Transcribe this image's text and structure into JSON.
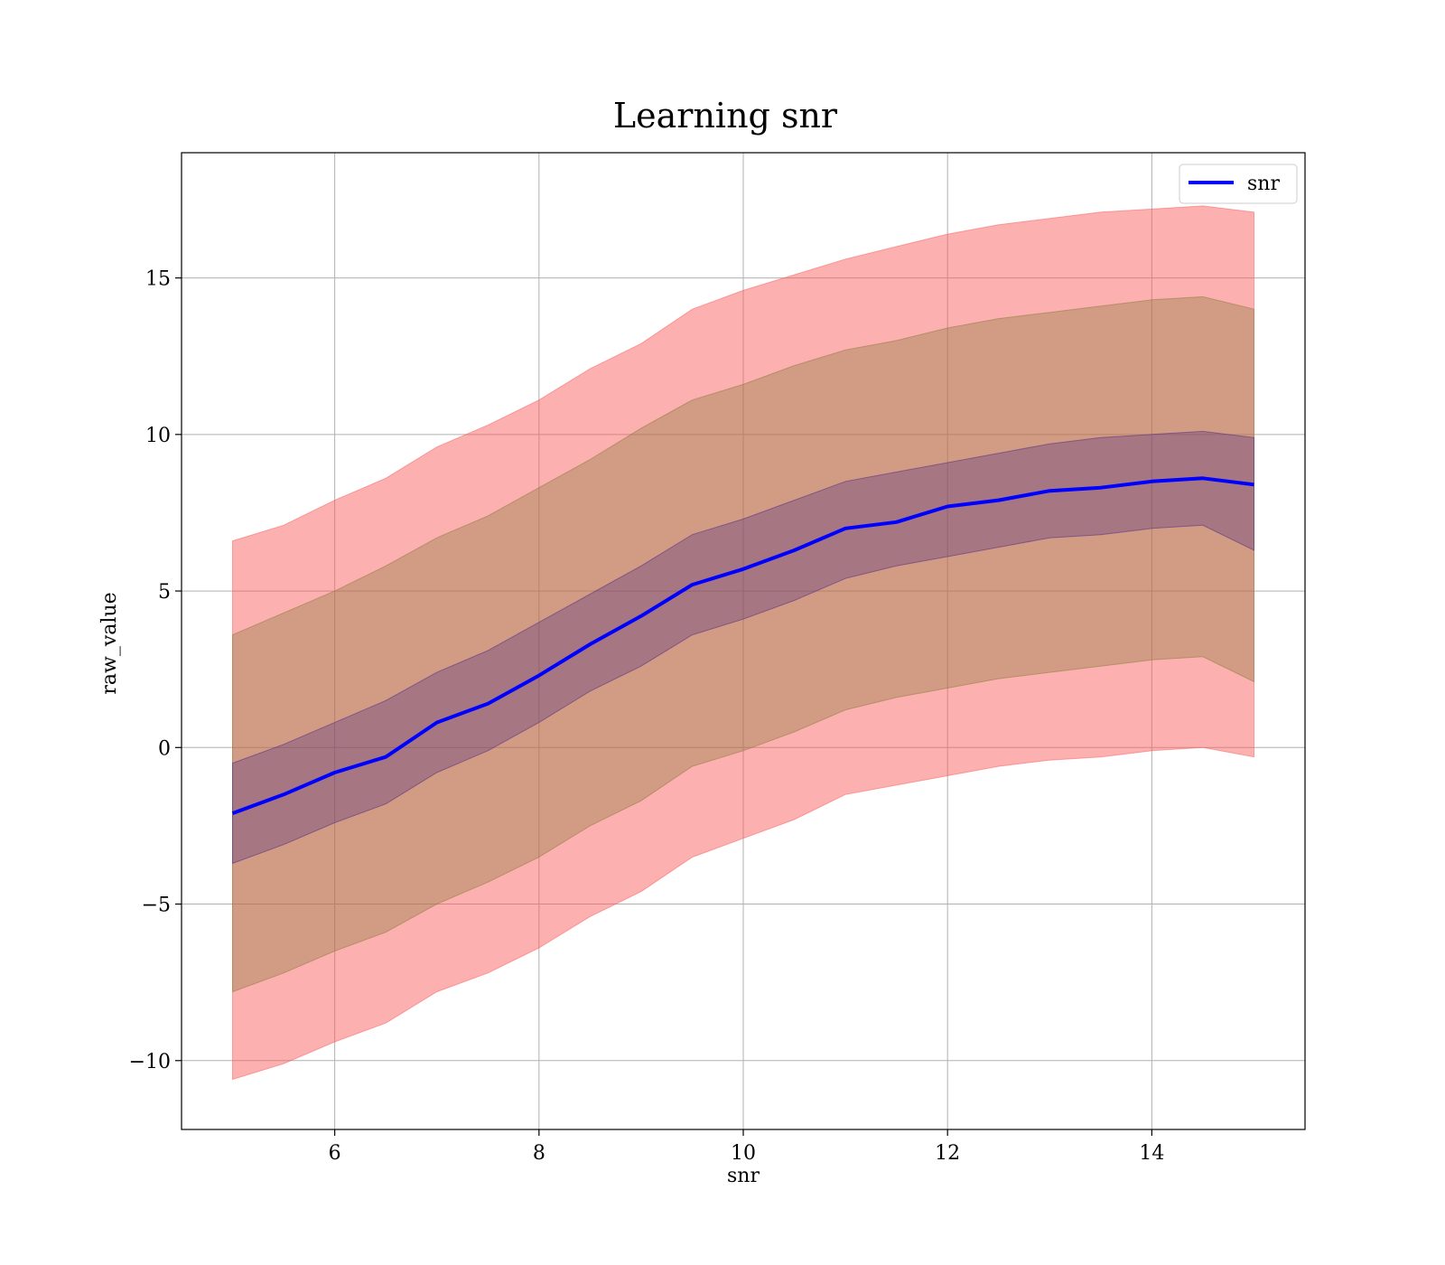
{
  "chart_data": {
    "type": "line",
    "title": "Learning snr",
    "xlabel": "snr",
    "ylabel": "raw_value",
    "xlim": [
      4.5,
      15.5
    ],
    "ylim": [
      -12.2,
      19.0
    ],
    "xticks": [
      6,
      8,
      10,
      12,
      14
    ],
    "yticks": [
      -10,
      -5,
      0,
      5,
      10,
      15
    ],
    "xtick_labels": [
      "6",
      "8",
      "10",
      "12",
      "14"
    ],
    "ytick_labels": [
      "−10",
      "−5",
      "0",
      "5",
      "10",
      "15"
    ],
    "grid": true,
    "legend": {
      "position": "top-right",
      "entries": [
        "snr"
      ]
    },
    "x": [
      5.0,
      5.5,
      6.0,
      6.5,
      7.0,
      7.5,
      8.0,
      8.5,
      9.0,
      9.5,
      10.0,
      10.5,
      11.0,
      11.5,
      12.0,
      12.5,
      13.0,
      13.5,
      14.0,
      14.5,
      15.0
    ],
    "series": [
      {
        "name": "snr",
        "color": "#0000ff",
        "values": [
          -2.1,
          -1.5,
          -0.8,
          -0.3,
          0.8,
          1.4,
          2.3,
          3.3,
          4.2,
          5.2,
          5.7,
          6.3,
          7.0,
          7.2,
          7.7,
          7.9,
          8.2,
          8.3,
          8.5,
          8.6,
          8.4
        ]
      }
    ],
    "bands": [
      {
        "color": "#fa5a5a",
        "opacity": 0.48,
        "lower": [
          -10.6,
          -10.1,
          -9.4,
          -8.8,
          -7.8,
          -7.2,
          -6.4,
          -5.4,
          -4.6,
          -3.5,
          -2.9,
          -2.3,
          -1.5,
          -1.2,
          -0.9,
          -0.6,
          -0.4,
          -0.3,
          -0.1,
          0.0,
          -0.3
        ],
        "upper": [
          6.6,
          7.1,
          7.9,
          8.6,
          9.6,
          10.3,
          11.1,
          12.1,
          12.9,
          14.0,
          14.6,
          15.1,
          15.6,
          16.0,
          16.4,
          16.7,
          16.9,
          17.1,
          17.2,
          17.3,
          17.1
        ]
      },
      {
        "color": "#8c7a3c",
        "opacity": 0.38,
        "lower": [
          -7.8,
          -7.2,
          -6.5,
          -5.9,
          -5.0,
          -4.3,
          -3.5,
          -2.5,
          -1.7,
          -0.6,
          -0.1,
          0.5,
          1.2,
          1.6,
          1.9,
          2.2,
          2.4,
          2.6,
          2.8,
          2.9,
          2.1
        ],
        "upper": [
          3.6,
          4.3,
          5.0,
          5.8,
          6.7,
          7.4,
          8.3,
          9.2,
          10.2,
          11.1,
          11.6,
          12.2,
          12.7,
          13.0,
          13.4,
          13.7,
          13.9,
          14.1,
          14.3,
          14.4,
          14.0
        ]
      },
      {
        "color": "#4b2882",
        "opacity": 0.32,
        "lower": [
          -3.7,
          -3.1,
          -2.4,
          -1.8,
          -0.8,
          -0.1,
          0.8,
          1.8,
          2.6,
          3.6,
          4.1,
          4.7,
          5.4,
          5.8,
          6.1,
          6.4,
          6.7,
          6.8,
          7.0,
          7.1,
          6.3
        ],
        "upper": [
          -0.5,
          0.1,
          0.8,
          1.5,
          2.4,
          3.1,
          4.0,
          4.9,
          5.8,
          6.8,
          7.3,
          7.9,
          8.5,
          8.8,
          9.1,
          9.4,
          9.7,
          9.9,
          10.0,
          10.1,
          9.9
        ]
      }
    ]
  }
}
